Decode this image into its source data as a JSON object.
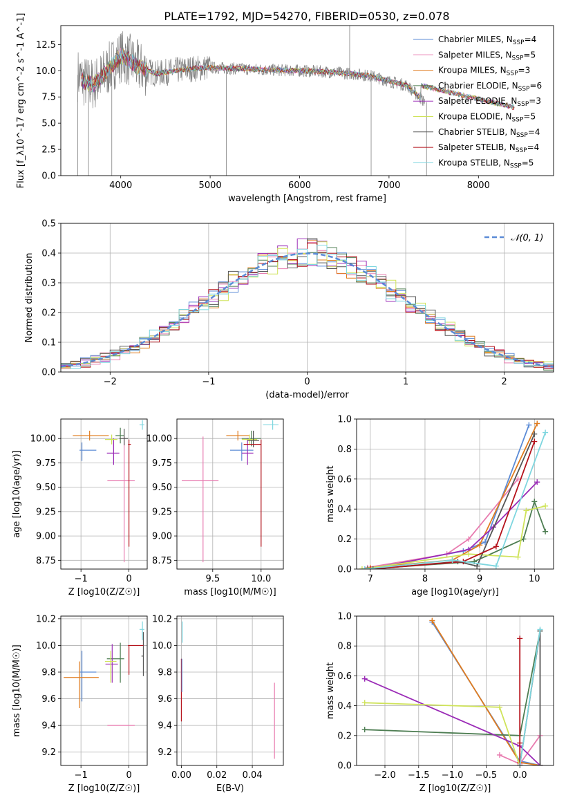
{
  "figure": {
    "title": "PLATE=1792, MJD=54270, FIBERID=0530, z=0.078"
  },
  "colors": {
    "chabrier_miles": "#5b8bd6",
    "salpeter_miles": "#e87cb0",
    "kroupa_miles": "#e07c1f",
    "chabrier_elodie": "#4d7d52",
    "salpeter_elodie": "#9b2cb7",
    "kroupa_elodie": "#cfe35a",
    "chabrier_stelib": "#555555",
    "salpeter_stelib": "#b5121b",
    "kroupa_stelib": "#7ed6df",
    "gauss": "#5b8bd6",
    "grid": "#b0b0b0"
  },
  "chart_data": [
    {
      "id": "spectrum",
      "type": "line",
      "title": "PLATE=1792, MJD=54270, FIBERID=0530, z=0.078",
      "xlabel": "wavelength [Angstrom, rest frame]",
      "ylabel": "Flux [f_λ10^-17 erg cm^-2 s^-1 A^-1]",
      "xlim": [
        3330,
        8840
      ],
      "ylim": [
        0,
        14.3
      ],
      "xticks": [
        4000,
        5000,
        6000,
        7000,
        8000
      ],
      "yticks": [
        0.0,
        2.5,
        5.0,
        7.5,
        10.0,
        12.5
      ],
      "grid": false,
      "legend_position": "top-right",
      "legend": [
        {
          "imf": "Chabrier",
          "lib": "MILES",
          "nssp": "4"
        },
        {
          "imf": "Salpeter",
          "lib": "MILES",
          "nssp": "5"
        },
        {
          "imf": "Kroupa",
          "lib": "MILES",
          "nssp": "3"
        },
        {
          "imf": "Chabrier",
          "lib": "ELODIE",
          "nssp": "6"
        },
        {
          "imf": "Salpeter",
          "lib": "ELODIE",
          "nssp": "3"
        },
        {
          "imf": "Kroupa",
          "lib": "ELODIE",
          "nssp": "5"
        },
        {
          "imf": "Chabrier",
          "lib": "STELIB",
          "nssp": "4"
        },
        {
          "imf": "Salpeter",
          "lib": "STELIB",
          "nssp": "4"
        },
        {
          "imf": "Kroupa",
          "lib": "STELIB",
          "nssp": "5"
        }
      ],
      "continuum": {
        "wavelength": [
          3520,
          3600,
          3700,
          3800,
          3900,
          4000,
          4100,
          4200,
          4400,
          4600,
          4800,
          5000,
          5300,
          5600,
          6000,
          6300,
          6600,
          6800,
          7000,
          7200,
          7400
        ],
        "flux": [
          9.6,
          8.9,
          8.7,
          9.5,
          10.5,
          11.4,
          11.0,
          10.3,
          9.7,
          10.0,
          10.2,
          10.3,
          10.2,
          10.1,
          10.0,
          9.9,
          9.7,
          9.5,
          9.0,
          8.6,
          7.0
        ]
      },
      "model_flux_at_8400": 6.5,
      "emission_spike_wavelength": [
        6560
      ],
      "emission_spike_flux": [
        14.3
      ],
      "dropouts_wavelength": [
        3520,
        3640,
        3900,
        5180,
        6800,
        7420
      ],
      "dropouts_flux": [
        0,
        0,
        0,
        0,
        0,
        0
      ]
    },
    {
      "id": "residuals",
      "type": "histogram",
      "xlabel": "(data-model)/error",
      "ylabel": "Normed distribution",
      "xlim": [
        -2.5,
        2.5
      ],
      "ylim": [
        0,
        0.5
      ],
      "xticks": [
        -2,
        -1,
        0,
        1,
        2
      ],
      "yticks": [
        0.0,
        0.1,
        0.2,
        0.3,
        0.4,
        0.5
      ],
      "grid": true,
      "legend_position": "top-right",
      "legend": [
        "𝒩(0, 1)"
      ],
      "bin_width": 0.1,
      "bin_start": -2.5,
      "bin_count": 50,
      "gaussian": {
        "mean": 0,
        "sigma": 1
      }
    },
    {
      "id": "age_vs_Z",
      "type": "scatter",
      "xlabel": "Z [log10(Z/Z☉)]",
      "ylabel": "age  [log10(age/yr)]",
      "xlim": [
        -1.42,
        0.38
      ],
      "ylim": [
        8.66,
        10.2
      ],
      "xticks": [
        -1,
        0
      ],
      "yticks": [
        8.75,
        9.0,
        9.25,
        9.5,
        9.75,
        10.0
      ],
      "grid": true,
      "points": [
        {
          "model": "chabrier_miles",
          "x": -0.98,
          "y": 9.88,
          "xerr": [
            0.05,
            0.3
          ],
          "yerr": [
            0.11,
            0.08
          ]
        },
        {
          "model": "salpeter_miles",
          "x": -0.1,
          "y": 9.57,
          "xerr": [
            0.35,
            0.22
          ],
          "yerr": [
            0.84,
            0.45
          ]
        },
        {
          "model": "kroupa_miles",
          "x": -0.82,
          "y": 10.03,
          "xerr": [
            0.35,
            0.4
          ],
          "yerr": [
            0.05,
            0.05
          ]
        },
        {
          "model": "chabrier_elodie",
          "x": -0.18,
          "y": 10.03,
          "xerr": [
            0.1,
            0.08
          ],
          "yerr": [
            0.08,
            0.08
          ]
        },
        {
          "model": "salpeter_elodie",
          "x": -0.32,
          "y": 9.85,
          "xerr": [
            0.14,
            0.12
          ],
          "yerr": [
            0.12,
            0.15
          ]
        },
        {
          "model": "kroupa_elodie",
          "x": -0.36,
          "y": 9.99,
          "xerr": [
            0.14,
            0.12
          ],
          "yerr": [
            0.05,
            0.05
          ]
        },
        {
          "model": "chabrier_stelib",
          "x": -0.1,
          "y": 10.0,
          "xerr": [
            0.1,
            0.08
          ],
          "yerr": [
            0.07,
            0.1
          ]
        },
        {
          "model": "salpeter_stelib",
          "x": 0.0,
          "y": 9.94,
          "xerr": [
            0.02,
            0.04
          ],
          "yerr": [
            1.05,
            0.05
          ]
        },
        {
          "model": "kroupa_stelib",
          "x": 0.28,
          "y": 10.14,
          "xerr": [
            0.06,
            0.04
          ],
          "yerr": [
            0.05,
            0.05
          ]
        }
      ]
    },
    {
      "id": "age_vs_mass",
      "type": "scatter",
      "xlabel": "mass [log10(M/M☉)]",
      "xlim": [
        9.13,
        10.23
      ],
      "ylim": [
        8.66,
        10.2
      ],
      "xticks": [
        9.5,
        10.0
      ],
      "yticks": [
        8.75,
        9.0,
        9.25,
        9.5,
        9.75,
        10.0
      ],
      "grid": true,
      "points": [
        {
          "model": "chabrier_miles",
          "x": 9.8,
          "y": 9.88,
          "xerr": [
            0.12,
            0.12
          ],
          "yerr": [
            0.11,
            0.08
          ]
        },
        {
          "model": "salpeter_miles",
          "x": 9.4,
          "y": 9.57,
          "xerr": [
            0.22,
            0.16
          ],
          "yerr": [
            0.84,
            0.45
          ]
        },
        {
          "model": "kroupa_miles",
          "x": 9.76,
          "y": 10.03,
          "xerr": [
            0.12,
            0.12
          ],
          "yerr": [
            0.05,
            0.05
          ]
        },
        {
          "model": "chabrier_elodie",
          "x": 9.9,
          "y": 10.0,
          "xerr": [
            0.1,
            0.1
          ],
          "yerr": [
            0.08,
            0.08
          ]
        },
        {
          "model": "salpeter_elodie",
          "x": 9.86,
          "y": 9.85,
          "xerr": [
            0.06,
            0.06
          ],
          "yerr": [
            0.12,
            0.15
          ]
        },
        {
          "model": "kroupa_elodie",
          "x": 9.88,
          "y": 9.99,
          "xerr": [
            0.08,
            0.08
          ],
          "yerr": [
            0.05,
            0.05
          ]
        },
        {
          "model": "chabrier_stelib",
          "x": 9.92,
          "y": 9.98,
          "xerr": [
            0.06,
            0.06
          ],
          "yerr": [
            0.07,
            0.1
          ]
        },
        {
          "model": "salpeter_stelib",
          "x": 10.0,
          "y": 9.94,
          "xerr": [
            0.18,
            0.0
          ],
          "yerr": [
            1.05,
            0.05
          ]
        },
        {
          "model": "kroupa_stelib",
          "x": 10.12,
          "y": 10.14,
          "xerr": [
            0.1,
            0.06
          ],
          "yerr": [
            0.05,
            0.05
          ]
        }
      ]
    },
    {
      "id": "massweight_vs_age",
      "type": "line",
      "xlabel": "age  [log10(age/yr)]",
      "ylabel": "mass weight",
      "xlim": [
        6.75,
        10.35
      ],
      "ylim": [
        0.0,
        1.0
      ],
      "xticks": [
        7,
        8,
        9,
        10
      ],
      "yticks": [
        0.0,
        0.2,
        0.4,
        0.6,
        0.8,
        1.0
      ],
      "grid": true,
      "series": [
        {
          "model": "chabrier_miles",
          "x": [
            6.9,
            8.7,
            9.1,
            9.9
          ],
          "y": [
            0.0,
            0.12,
            0.18,
            0.96
          ]
        },
        {
          "model": "salpeter_miles",
          "x": [
            6.95,
            8.4,
            8.8,
            9.7
          ],
          "y": [
            0.01,
            0.1,
            0.2,
            0.6
          ]
        },
        {
          "model": "kroupa_miles",
          "x": [
            7.0,
            8.5,
            9.0,
            10.05
          ],
          "y": [
            0.01,
            0.06,
            0.16,
            0.97
          ]
        },
        {
          "model": "chabrier_elodie",
          "x": [
            6.95,
            8.9,
            9.8,
            10.0,
            10.2
          ],
          "y": [
            0.0,
            0.05,
            0.2,
            0.45,
            0.25
          ]
        },
        {
          "model": "salpeter_elodie",
          "x": [
            7.0,
            8.8,
            9.25,
            10.05
          ],
          "y": [
            0.0,
            0.13,
            0.28,
            0.58
          ]
        },
        {
          "model": "kroupa_elodie",
          "x": [
            6.85,
            8.8,
            9.7,
            9.85,
            10.2
          ],
          "y": [
            0.0,
            0.1,
            0.08,
            0.39,
            0.42
          ]
        },
        {
          "model": "chabrier_stelib",
          "x": [
            7.05,
            8.6,
            8.95,
            10.0
          ],
          "y": [
            0.0,
            0.05,
            0.02,
            0.9
          ]
        },
        {
          "model": "salpeter_stelib",
          "x": [
            7.0,
            8.7,
            9.3,
            10.0
          ],
          "y": [
            0.0,
            0.05,
            0.15,
            0.85
          ]
        },
        {
          "model": "kroupa_stelib",
          "x": [
            6.9,
            8.5,
            9.3,
            10.2
          ],
          "y": [
            0.0,
            0.06,
            0.02,
            0.91
          ]
        }
      ]
    },
    {
      "id": "mass_vs_Z",
      "type": "scatter",
      "xlabel": "Z [log10(Z/Z☉)]",
      "ylabel": "mass [log10(M/M☉)]",
      "xlim": [
        -1.42,
        0.38
      ],
      "ylim": [
        9.1,
        10.22
      ],
      "xticks": [
        -1,
        0
      ],
      "yticks": [
        9.2,
        9.4,
        9.6,
        9.8,
        10.0,
        10.2
      ],
      "grid": true,
      "points": [
        {
          "model": "chabrier_miles",
          "x": -0.98,
          "y": 9.8,
          "xerr": [
            0.05,
            0.3
          ],
          "yerr": [
            0.22,
            0.16
          ]
        },
        {
          "model": "salpeter_miles",
          "x": -0.1,
          "y": 9.4,
          "xerr": [
            0.35,
            0.22
          ],
          "yerr": [
            0.0,
            0.0
          ]
        },
        {
          "model": "kroupa_miles",
          "x": -1.03,
          "y": 9.76,
          "xerr": [
            0.33,
            0.4
          ],
          "yerr": [
            0.23,
            0.12
          ]
        },
        {
          "model": "chabrier_elodie",
          "x": -0.18,
          "y": 9.9,
          "xerr": [
            0.28,
            0.08
          ],
          "yerr": [
            0.18,
            0.12
          ]
        },
        {
          "model": "salpeter_elodie",
          "x": -0.35,
          "y": 9.86,
          "xerr": [
            0.14,
            0.12
          ],
          "yerr": [
            0.14,
            0.15
          ]
        },
        {
          "model": "kroupa_elodie",
          "x": -0.38,
          "y": 9.88,
          "xerr": [
            0.12,
            0.12
          ],
          "yerr": [
            0.16,
            0.08
          ]
        },
        {
          "model": "chabrier_stelib",
          "x": 0.3,
          "y": 9.92,
          "xerr": [
            0.04,
            0.0
          ],
          "yerr": [
            0.15,
            0.18
          ]
        },
        {
          "model": "salpeter_stelib",
          "x": 0.0,
          "y": 10.0,
          "xerr": [
            0.02,
            0.3
          ],
          "yerr": [
            0.22,
            0.0
          ]
        },
        {
          "model": "kroupa_stelib",
          "x": 0.28,
          "y": 10.12,
          "xerr": [
            0.06,
            0.04
          ],
          "yerr": [
            0.08,
            0.06
          ]
        }
      ]
    },
    {
      "id": "mass_vs_ebv",
      "type": "scatter",
      "xlabel": "E(B-V)",
      "xlim": [
        -0.0025,
        0.0575
      ],
      "ylim": [
        9.1,
        10.22
      ],
      "xticks": [
        0.0,
        0.02,
        0.04
      ],
      "yticks": [
        9.2,
        9.4,
        9.6,
        9.8,
        10.0,
        10.2
      ],
      "grid": true,
      "points": [
        {
          "model": "salpeter_miles",
          "x": 0.0525,
          "y": 9.4,
          "xerr": [
            0,
            0
          ],
          "yerr": [
            0.25,
            0.32
          ]
        },
        {
          "model": "salpeter_stelib",
          "x": 0.0,
          "y": 9.68,
          "xerr": [
            0,
            0
          ],
          "yerr": [
            0.25,
            0.22
          ]
        },
        {
          "model": "kroupa_stelib",
          "x": 0.0005,
          "y": 10.12,
          "xerr": [
            0,
            0
          ],
          "yerr": [
            0.1,
            0.06
          ]
        },
        {
          "model": "chabrier_miles",
          "x": 0.0003,
          "y": 9.8,
          "xerr": [
            0,
            0
          ],
          "yerr": [
            0.15,
            0.1
          ]
        }
      ]
    },
    {
      "id": "massweight_vs_Z",
      "type": "line",
      "xlabel": "Z [log10(Z/Z☉)]",
      "ylabel": "mass weight",
      "xlim": [
        -2.42,
        0.5
      ],
      "ylim": [
        0.0,
        1.0
      ],
      "xticks": [
        -2.0,
        -1.5,
        -1.0,
        -0.5,
        0.0
      ],
      "yticks": [
        0.0,
        0.2,
        0.4,
        0.6,
        0.8,
        1.0
      ],
      "grid": true,
      "series": [
        {
          "model": "chabrier_miles",
          "x": [
            -1.3,
            0.0,
            0.3
          ],
          "y": [
            0.96,
            0.03,
            0.0
          ]
        },
        {
          "model": "salpeter_miles",
          "x": [
            -0.3,
            0.0,
            0.3
          ],
          "y": [
            0.07,
            0.01,
            0.2
          ]
        },
        {
          "model": "kroupa_miles",
          "x": [
            -1.3,
            0.0,
            0.3
          ],
          "y": [
            0.97,
            0.02,
            0.0
          ]
        },
        {
          "model": "chabrier_elodie",
          "x": [
            -2.3,
            0.0,
            0.3
          ],
          "y": [
            0.24,
            0.2,
            0.9
          ]
        },
        {
          "model": "salpeter_elodie",
          "x": [
            -2.3,
            0.0,
            0.3
          ],
          "y": [
            0.58,
            0.13,
            0.0
          ]
        },
        {
          "model": "kroupa_elodie",
          "x": [
            -2.3,
            -0.3,
            0.0
          ],
          "y": [
            0.42,
            0.39,
            0.0
          ]
        },
        {
          "model": "chabrier_stelib",
          "x": [
            0.0,
            0.3,
            0.3
          ],
          "y": [
            0.0,
            0.9,
            0.0
          ]
        },
        {
          "model": "salpeter_stelib",
          "x": [
            0.0,
            0.0,
            0.0
          ],
          "y": [
            0.0,
            0.85,
            0.15
          ]
        },
        {
          "model": "kroupa_stelib",
          "x": [
            0.0,
            0.3
          ],
          "y": [
            0.0,
            0.91
          ]
        }
      ]
    }
  ]
}
